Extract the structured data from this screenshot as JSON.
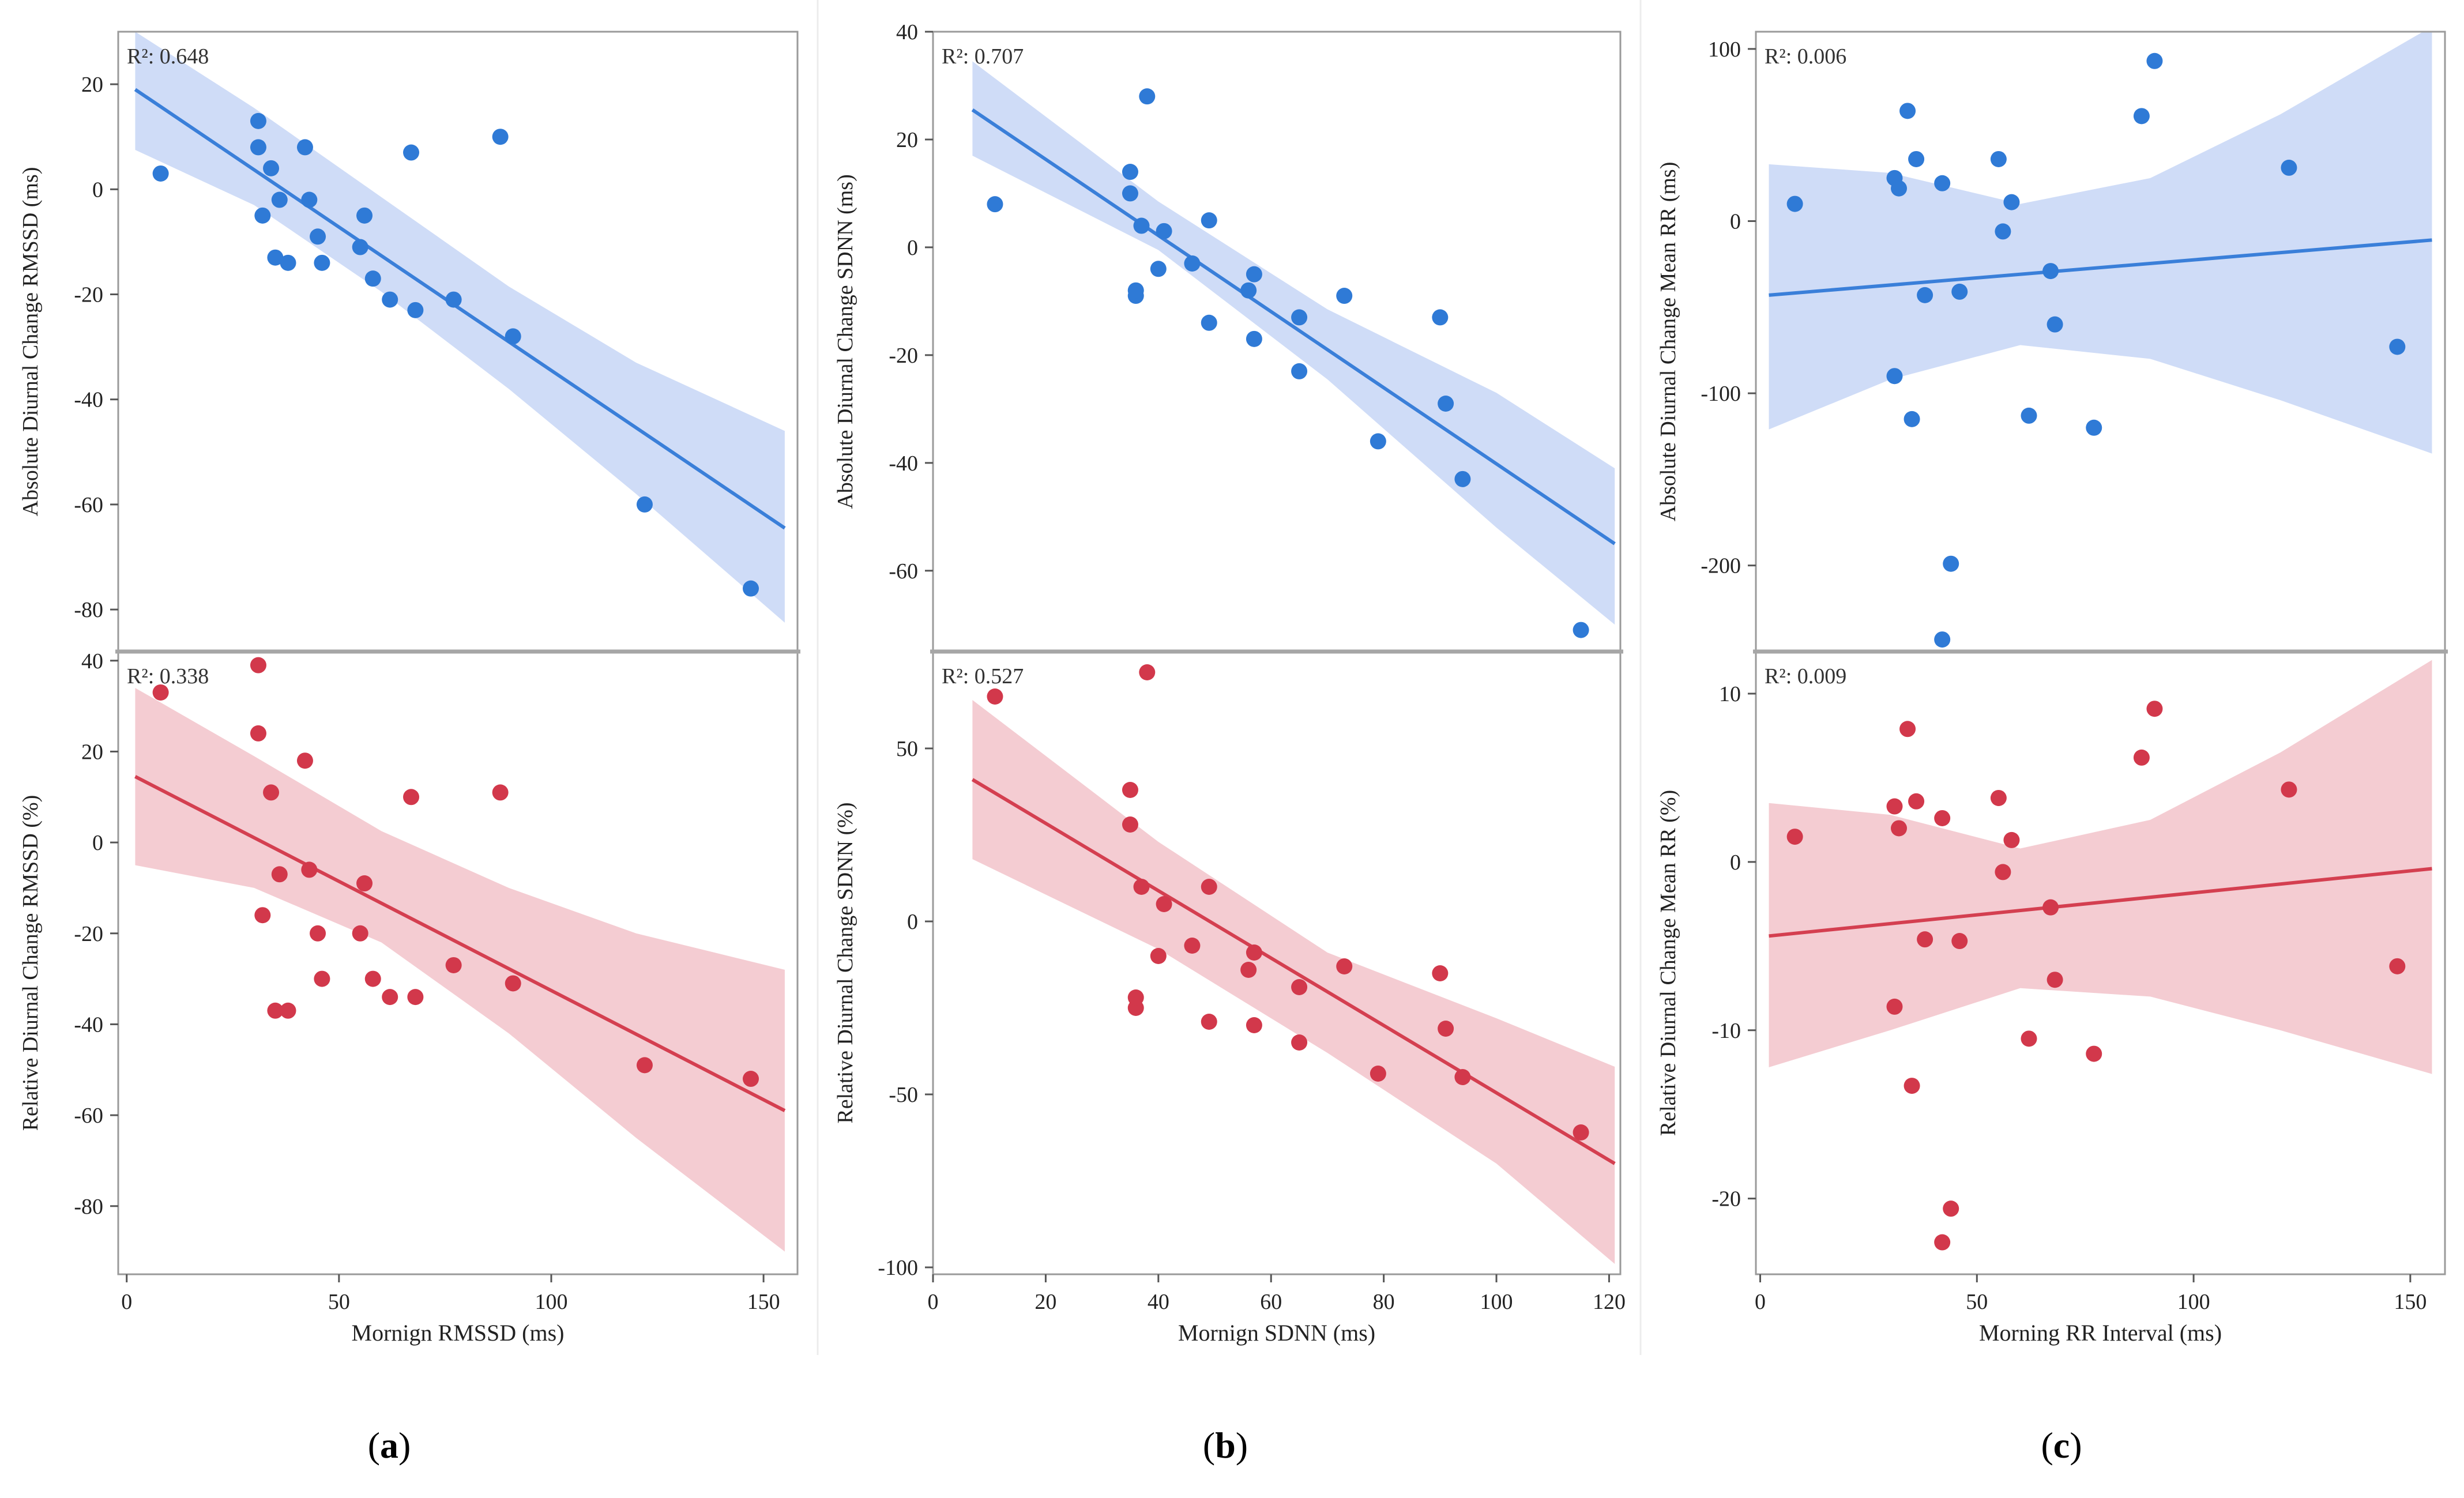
{
  "colors": {
    "blue_point": "#2f7ad6",
    "blue_line": "#3a7fd9",
    "blue_band": "#cfdcf7",
    "red_point": "#d2384b",
    "red_line": "#d43f50",
    "red_band": "#f4ccd2",
    "frame": "#9a9a9a",
    "divider": "#a6a6a6"
  },
  "panel_labels": [
    {
      "open": "(",
      "letter": "a",
      "close": ")"
    },
    {
      "open": "(",
      "letter": "b",
      "close": ")"
    },
    {
      "open": "(",
      "letter": "c",
      "close": ")"
    }
  ],
  "chart_data": [
    {
      "id": "a-top",
      "type": "scatter",
      "r2_label": "R²: 0.648",
      "ylabel": "Absolute Diurnal Change RMSSD (ms)",
      "xlabel": "",
      "xlim": [
        -2,
        158
      ],
      "ylim": [
        -88,
        30
      ],
      "xticks": [],
      "yticks": [
        20,
        0,
        -20,
        -40,
        -60,
        -80
      ],
      "color": "blue",
      "points": [
        [
          8,
          3
        ],
        [
          31,
          13
        ],
        [
          31,
          8
        ],
        [
          32,
          -5
        ],
        [
          34,
          4
        ],
        [
          35,
          -13
        ],
        [
          36,
          -2
        ],
        [
          38,
          -14
        ],
        [
          42,
          8
        ],
        [
          43,
          -2
        ],
        [
          45,
          -9
        ],
        [
          46,
          -14
        ],
        [
          55,
          -11
        ],
        [
          56,
          -5
        ],
        [
          58,
          -17
        ],
        [
          62,
          -21
        ],
        [
          67,
          7
        ],
        [
          68,
          -23
        ],
        [
          77,
          -21
        ],
        [
          88,
          10
        ],
        [
          91,
          -28
        ],
        [
          122,
          -60
        ],
        [
          147,
          -76
        ]
      ],
      "fit": {
        "x0": 2,
        "x1": 155,
        "y0": 19,
        "y1": -64.5
      },
      "band": {
        "upper": [
          [
            2,
            30
          ],
          [
            30,
            15.5
          ],
          [
            60,
            -1.5
          ],
          [
            90,
            -18.5
          ],
          [
            120,
            -33
          ],
          [
            155,
            -46
          ]
        ],
        "lower": [
          [
            2,
            7.5
          ],
          [
            30,
            -3
          ],
          [
            60,
            -19.5
          ],
          [
            90,
            -38
          ],
          [
            120,
            -58
          ],
          [
            155,
            -82.5
          ]
        ]
      }
    },
    {
      "id": "a-bottom",
      "type": "scatter",
      "r2_label": "R²: 0.338",
      "ylabel": "Relative Diurnal Change RMSSD (%)",
      "xlabel": "Mornign RMSSD (ms)",
      "xlim": [
        -2,
        158
      ],
      "ylim": [
        -95,
        42
      ],
      "xticks": [
        0,
        50,
        100,
        150
      ],
      "yticks": [
        40,
        20,
        0,
        -20,
        -40,
        -60,
        -80
      ],
      "color": "red",
      "points": [
        [
          8,
          33
        ],
        [
          31,
          39
        ],
        [
          31,
          24
        ],
        [
          32,
          -16
        ],
        [
          34,
          11
        ],
        [
          35,
          -37
        ],
        [
          36,
          -7
        ],
        [
          38,
          -37
        ],
        [
          42,
          18
        ],
        [
          43,
          -6
        ],
        [
          45,
          -20
        ],
        [
          46,
          -30
        ],
        [
          55,
          -20
        ],
        [
          56,
          -9
        ],
        [
          58,
          -30
        ],
        [
          62,
          -34
        ],
        [
          67,
          10
        ],
        [
          68,
          -34
        ],
        [
          77,
          -27
        ],
        [
          88,
          11
        ],
        [
          91,
          -31
        ],
        [
          122,
          -49
        ],
        [
          147,
          -52
        ]
      ],
      "fit": {
        "x0": 2,
        "x1": 155,
        "y0": 14.5,
        "y1": -59
      },
      "band": {
        "upper": [
          [
            2,
            34
          ],
          [
            30,
            19
          ],
          [
            60,
            2.5
          ],
          [
            90,
            -10
          ],
          [
            120,
            -20
          ],
          [
            155,
            -28
          ]
        ],
        "lower": [
          [
            2,
            -5
          ],
          [
            30,
            -10
          ],
          [
            60,
            -22
          ],
          [
            90,
            -42
          ],
          [
            120,
            -65
          ],
          [
            155,
            -90
          ]
        ]
      }
    },
    {
      "id": "b-top",
      "type": "scatter",
      "r2_label": "R²: 0.707",
      "ylabel": "Absolute Diurnal Change SDNN (ms)",
      "xlabel": "",
      "xlim": [
        0,
        122
      ],
      "ylim": [
        -75,
        40
      ],
      "xticks": [],
      "yticks": [
        40,
        20,
        0,
        -20,
        -40,
        -60
      ],
      "color": "blue",
      "points": [
        [
          11,
          8
        ],
        [
          35,
          14
        ],
        [
          35,
          10
        ],
        [
          36,
          -9
        ],
        [
          36,
          -8
        ],
        [
          37,
          4
        ],
        [
          38,
          28
        ],
        [
          40,
          -4
        ],
        [
          41,
          3
        ],
        [
          46,
          -3
        ],
        [
          49,
          5
        ],
        [
          49,
          -14
        ],
        [
          56,
          -8
        ],
        [
          57,
          -5
        ],
        [
          57,
          -17
        ],
        [
          65,
          -13
        ],
        [
          65,
          -23
        ],
        [
          73,
          -9
        ],
        [
          79,
          -36
        ],
        [
          90,
          -13
        ],
        [
          91,
          -29
        ],
        [
          94,
          -43
        ],
        [
          115,
          -71
        ]
      ],
      "fit": {
        "x0": 7,
        "x1": 121,
        "y0": 25.5,
        "y1": -55
      },
      "band": {
        "upper": [
          [
            7,
            34.5
          ],
          [
            40,
            8.5
          ],
          [
            70,
            -11.5
          ],
          [
            100,
            -27
          ],
          [
            121,
            -41
          ]
        ],
        "lower": [
          [
            7,
            17
          ],
          [
            40,
            -0.5
          ],
          [
            70,
            -24.5
          ],
          [
            100,
            -52
          ],
          [
            121,
            -70
          ]
        ]
      }
    },
    {
      "id": "b-bottom",
      "type": "scatter",
      "r2_label": "R²: 0.527",
      "ylabel": "Relative Diurnal Change SDNN (%)",
      "xlabel": "Mornign SDNN (ms)",
      "xlim": [
        0,
        122
      ],
      "ylim": [
        -102,
        78
      ],
      "xticks": [
        0,
        20,
        40,
        60,
        80,
        100,
        120
      ],
      "yticks": [
        50,
        0,
        -50,
        -100
      ],
      "color": "red",
      "points": [
        [
          11,
          65
        ],
        [
          35,
          38
        ],
        [
          35,
          28
        ],
        [
          36,
          -25
        ],
        [
          36,
          -22
        ],
        [
          37,
          10
        ],
        [
          38,
          72
        ],
        [
          40,
          -10
        ],
        [
          41,
          5
        ],
        [
          46,
          -7
        ],
        [
          49,
          10
        ],
        [
          49,
          -29
        ],
        [
          56,
          -14
        ],
        [
          57,
          -9
        ],
        [
          57,
          -30
        ],
        [
          65,
          -19
        ],
        [
          65,
          -35
        ],
        [
          73,
          -13
        ],
        [
          79,
          -44
        ],
        [
          90,
          -15
        ],
        [
          91,
          -31
        ],
        [
          94,
          -45
        ],
        [
          115,
          -61
        ]
      ],
      "fit": {
        "x0": 7,
        "x1": 121,
        "y0": 41,
        "y1": -70
      },
      "band": {
        "upper": [
          [
            7,
            64
          ],
          [
            40,
            23
          ],
          [
            70,
            -9
          ],
          [
            100,
            -28
          ],
          [
            121,
            -42
          ]
        ],
        "lower": [
          [
            7,
            18
          ],
          [
            40,
            -8
          ],
          [
            70,
            -38
          ],
          [
            100,
            -70
          ],
          [
            121,
            -99
          ]
        ]
      }
    },
    {
      "id": "c-top",
      "type": "scatter",
      "r2_label": "R²: 0.006",
      "ylabel": "Absolute Diurnal Change Mean RR (ms)",
      "xlabel": "",
      "xlim": [
        -1,
        158
      ],
      "ylim": [
        -250,
        110
      ],
      "xticks": [],
      "yticks": [
        100,
        0,
        -100,
        -200
      ],
      "color": "blue",
      "points": [
        [
          8,
          10
        ],
        [
          31,
          25
        ],
        [
          32,
          19
        ],
        [
          31,
          -90
        ],
        [
          34,
          64
        ],
        [
          35,
          -115
        ],
        [
          36,
          36
        ],
        [
          38,
          -43
        ],
        [
          42,
          22
        ],
        [
          42,
          -243
        ],
        [
          44,
          -199
        ],
        [
          46,
          -41
        ],
        [
          55,
          36
        ],
        [
          56,
          -6
        ],
        [
          58,
          11
        ],
        [
          62,
          -113
        ],
        [
          67,
          -29
        ],
        [
          68,
          -60
        ],
        [
          77,
          -120
        ],
        [
          88,
          61
        ],
        [
          91,
          93
        ],
        [
          122,
          31
        ],
        [
          147,
          -73
        ]
      ],
      "fit": {
        "x0": 2,
        "x1": 155,
        "y0": -43,
        "y1": -11
      },
      "band": {
        "upper": [
          [
            2,
            33
          ],
          [
            30,
            28
          ],
          [
            60,
            10
          ],
          [
            90,
            25
          ],
          [
            120,
            62
          ],
          [
            155,
            113
          ]
        ],
        "lower": [
          [
            2,
            -121
          ],
          [
            30,
            -92
          ],
          [
            60,
            -72
          ],
          [
            90,
            -80
          ],
          [
            120,
            -104
          ],
          [
            155,
            -135
          ]
        ]
      }
    },
    {
      "id": "c-bottom",
      "type": "scatter",
      "r2_label": "R²: 0.009",
      "ylabel": "Relative Diurnal Change Mean RR (%)",
      "xlabel": "Morning RR Interval (ms)",
      "xlim": [
        -1,
        158
      ],
      "ylim": [
        -24.5,
        12.5
      ],
      "xticks": [
        0,
        50,
        100,
        150
      ],
      "yticks": [
        10,
        0,
        -10,
        -20
      ],
      "color": "red",
      "points": [
        [
          8,
          1.5
        ],
        [
          31,
          3.3
        ],
        [
          32,
          2
        ],
        [
          31,
          -8.6
        ],
        [
          34,
          7.9
        ],
        [
          35,
          -13.3
        ],
        [
          36,
          3.6
        ],
        [
          38,
          -4.6
        ],
        [
          42,
          2.6
        ],
        [
          42,
          -22.6
        ],
        [
          44,
          -20.6
        ],
        [
          46,
          -4.7
        ],
        [
          55,
          3.8
        ],
        [
          56,
          -0.6
        ],
        [
          58,
          1.3
        ],
        [
          62,
          -10.5
        ],
        [
          67,
          -2.7
        ],
        [
          68,
          -7
        ],
        [
          77,
          -11.4
        ],
        [
          88,
          6.2
        ],
        [
          91,
          9.1
        ],
        [
          122,
          4.3
        ],
        [
          147,
          -6.2
        ]
      ],
      "fit": {
        "x0": 2,
        "x1": 155,
        "y0": -4.4,
        "y1": -0.4
      },
      "band": {
        "upper": [
          [
            2,
            3.5
          ],
          [
            30,
            2.8
          ],
          [
            60,
            0.8
          ],
          [
            90,
            2.5
          ],
          [
            120,
            6.5
          ],
          [
            155,
            12
          ]
        ],
        "lower": [
          [
            2,
            -12.2
          ],
          [
            30,
            -10
          ],
          [
            60,
            -7.5
          ],
          [
            90,
            -8
          ],
          [
            120,
            -10
          ],
          [
            155,
            -12.6
          ]
        ]
      }
    }
  ]
}
